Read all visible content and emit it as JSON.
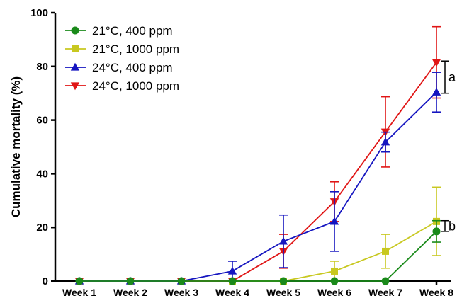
{
  "chart_data": {
    "type": "line",
    "title": "",
    "xlabel": "",
    "ylabel": "Cumulative mortality (%)",
    "categories": [
      "Week 1",
      "Week 2",
      "Week 3",
      "Week 4",
      "Week 5",
      "Week 6",
      "Week 7",
      "Week 8"
    ],
    "ylim": [
      0,
      100
    ],
    "yticks": [
      0,
      20,
      40,
      60,
      80,
      100
    ],
    "legend_position": "top-left",
    "series": [
      {
        "name": "21°C, 400 ppm",
        "color": "#1a8a1a",
        "marker": "circle",
        "values": [
          0,
          0,
          0,
          0,
          0,
          0,
          0,
          18.5
        ],
        "err_low": [
          0,
          0,
          0,
          0,
          0,
          0,
          0,
          4
        ],
        "err_high": [
          0,
          0,
          0,
          0,
          0,
          0,
          0,
          4
        ]
      },
      {
        "name": "21°C, 1000 ppm",
        "color": "#c8c820",
        "marker": "square",
        "values": [
          0,
          0,
          0,
          0,
          0,
          3.7,
          11.1,
          22.2
        ],
        "err_low": [
          0,
          0,
          0,
          0,
          0,
          3.7,
          6.3,
          12.7
        ],
        "err_high": [
          0,
          0,
          0,
          0,
          0,
          3.7,
          6.3,
          12.8
        ]
      },
      {
        "name": "24°C, 400 ppm",
        "color": "#1515c0",
        "marker": "triangle-up",
        "values": [
          0,
          0,
          0,
          3.7,
          14.8,
          22.2,
          51.8,
          70.4
        ],
        "err_low": [
          0,
          0,
          0,
          3.7,
          9.8,
          11.1,
          3.7,
          7.4
        ],
        "err_high": [
          0,
          0,
          0,
          3.7,
          9.8,
          11.1,
          3.7,
          7.4
        ]
      },
      {
        "name": "24°C, 1000 ppm",
        "color": "#e01515",
        "marker": "triangle-down",
        "values": [
          0,
          0,
          0,
          0,
          11.1,
          29.6,
          55.6,
          81.5
        ],
        "err_low": [
          0,
          0,
          0,
          0,
          6.3,
          7.4,
          13.1,
          13.3
        ],
        "err_high": [
          0,
          0,
          0,
          0,
          6.3,
          7.4,
          13.1,
          13.3
        ]
      }
    ],
    "annotations": [
      {
        "label": "a",
        "y_range": [
          70,
          82
        ]
      },
      {
        "label": "b",
        "y_range": [
          18.5,
          22.5
        ]
      }
    ]
  }
}
